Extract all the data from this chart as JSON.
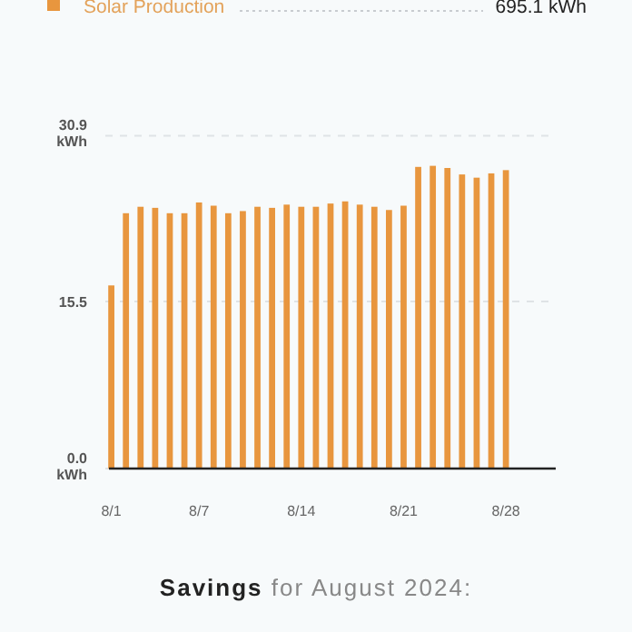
{
  "chart_data": {
    "type": "bar",
    "categories": [
      "8/1",
      null,
      null,
      null,
      null,
      null,
      "8/7",
      null,
      null,
      null,
      null,
      null,
      null,
      "8/14",
      null,
      null,
      null,
      null,
      null,
      null,
      "8/21",
      null,
      null,
      null,
      null,
      null,
      null,
      "8/28",
      null,
      null,
      null
    ],
    "series": [
      {
        "name": "Solar Production",
        "color": "#e8963e",
        "values": [
          17.0,
          23.7,
          24.3,
          24.2,
          23.7,
          23.7,
          24.7,
          24.4,
          23.7,
          23.9,
          24.3,
          24.2,
          24.5,
          24.3,
          24.3,
          24.6,
          24.8,
          24.5,
          24.3,
          24.0,
          24.4,
          28.0,
          28.1,
          27.9,
          27.3,
          27.0,
          27.4,
          27.7,
          null,
          null,
          null
        ]
      }
    ],
    "ylim": [
      0,
      30.9
    ],
    "yticks": [
      {
        "value": 0,
        "label": "0.0 kWh"
      },
      15.5,
      {
        "value": 30.9,
        "label": "30.9 kWh"
      }
    ],
    "grid": "y",
    "legend": "top",
    "annotations": [
      "695.1 kWh",
      "Savings for August 2024:"
    ]
  }
}
